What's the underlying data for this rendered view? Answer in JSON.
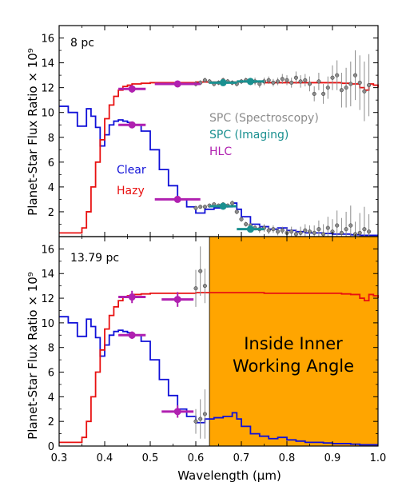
{
  "chart_data": [
    {
      "type": "line",
      "panel_label": "8 pc",
      "ylabel": "Planet-Star Flux Ratio  × 10⁹",
      "xlim": [
        0.3,
        1.0
      ],
      "ylim": [
        0,
        17
      ],
      "yticks": [
        "0",
        "2",
        "4",
        "6",
        "8",
        "10",
        "12",
        "14",
        "16"
      ],
      "legend_upper": [
        {
          "label": "SPC (Spectroscopy)",
          "color": "#8c8c8c"
        },
        {
          "label": "SPC (Imaging)",
          "color": "#1a9090"
        },
        {
          "label": "HLC",
          "color": "#b020b0"
        }
      ],
      "legend_lower": [
        {
          "label": "Clear",
          "color": "#1010d8"
        },
        {
          "label": "Hazy",
          "color": "#e81010"
        }
      ],
      "series": [
        {
          "name": "Clear",
          "color": "#1010d8",
          "x": [
            0.3,
            0.32,
            0.34,
            0.36,
            0.37,
            0.38,
            0.39,
            0.4,
            0.41,
            0.42,
            0.43,
            0.44,
            0.45,
            0.46,
            0.48,
            0.5,
            0.52,
            0.54,
            0.56,
            0.58,
            0.6,
            0.62,
            0.64,
            0.66,
            0.68,
            0.69,
            0.7,
            0.72,
            0.74,
            0.76,
            0.78,
            0.8,
            0.82,
            0.84,
            0.86,
            0.88,
            0.9,
            0.92,
            0.94,
            0.96,
            0.98,
            1.0
          ],
          "y": [
            10.5,
            10.0,
            8.9,
            10.3,
            9.7,
            8.8,
            7.3,
            8.2,
            9.0,
            9.3,
            9.4,
            9.3,
            9.2,
            9.0,
            8.5,
            7.0,
            5.4,
            4.1,
            3.0,
            2.4,
            1.9,
            2.2,
            2.3,
            2.4,
            2.7,
            2.2,
            1.6,
            1.0,
            0.8,
            0.6,
            0.7,
            0.5,
            0.4,
            0.3,
            0.3,
            0.25,
            0.2,
            0.2,
            0.15,
            0.1,
            0.1,
            0.1
          ]
        },
        {
          "name": "Hazy",
          "color": "#e81010",
          "x": [
            0.3,
            0.32,
            0.34,
            0.35,
            0.36,
            0.37,
            0.38,
            0.39,
            0.4,
            0.41,
            0.42,
            0.43,
            0.44,
            0.45,
            0.46,
            0.48,
            0.5,
            0.55,
            0.6,
            0.65,
            0.7,
            0.75,
            0.8,
            0.85,
            0.9,
            0.92,
            0.94,
            0.96,
            0.97,
            0.98,
            0.99,
            1.0
          ],
          "y": [
            0.3,
            0.3,
            0.3,
            0.7,
            2.0,
            4.0,
            6.0,
            7.8,
            9.5,
            10.6,
            11.3,
            11.8,
            12.1,
            12.2,
            12.3,
            12.35,
            12.4,
            12.4,
            12.45,
            12.45,
            12.45,
            12.4,
            12.4,
            12.4,
            12.4,
            12.35,
            12.3,
            12.0,
            11.8,
            12.3,
            12.2,
            12.0
          ]
        },
        {
          "name": "SPC (Spectroscopy)",
          "color": "#8c8c8c",
          "x": [
            0.6,
            0.61,
            0.62,
            0.63,
            0.64,
            0.65,
            0.66,
            0.67,
            0.68,
            0.69,
            0.7,
            0.71,
            0.72,
            0.73,
            0.74,
            0.75,
            0.76,
            0.77,
            0.78,
            0.79,
            0.8,
            0.81,
            0.82,
            0.83,
            0.84,
            0.85,
            0.86,
            0.87,
            0.88,
            0.89,
            0.9,
            0.91,
            0.92,
            0.93,
            0.94,
            0.95,
            0.96,
            0.97,
            0.98
          ],
          "y": [
            12.3,
            12.4,
            12.6,
            12.5,
            12.3,
            12.4,
            12.6,
            12.5,
            12.4,
            12.3,
            12.5,
            12.6,
            12.4,
            12.5,
            12.3,
            12.5,
            12.6,
            12.4,
            12.5,
            12.7,
            12.6,
            12.4,
            12.8,
            12.5,
            12.6,
            12.3,
            11.5,
            12.5,
            11.5,
            12.0,
            12.8,
            13.0,
            11.8,
            12.0,
            12.3,
            13.0,
            12.4,
            11.7,
            12.2
          ],
          "err": [
            0.2,
            0.2,
            0.2,
            0.2,
            0.2,
            0.2,
            0.2,
            0.2,
            0.2,
            0.2,
            0.2,
            0.2,
            0.2,
            0.3,
            0.3,
            0.3,
            0.3,
            0.3,
            0.3,
            0.4,
            0.4,
            0.4,
            0.5,
            0.5,
            0.5,
            0.6,
            0.6,
            0.7,
            0.8,
            0.9,
            1.0,
            1.2,
            1.4,
            1.6,
            1.8,
            2.0,
            2.2,
            2.4,
            2.5
          ]
        },
        {
          "name": "SPC (Spectroscopy) low",
          "color": "#8c8c8c",
          "x": [
            0.6,
            0.61,
            0.62,
            0.63,
            0.64,
            0.65,
            0.66,
            0.67,
            0.68,
            0.69,
            0.7,
            0.71,
            0.72,
            0.73,
            0.74,
            0.75,
            0.76,
            0.77,
            0.78,
            0.79,
            0.8,
            0.81,
            0.82,
            0.83,
            0.84,
            0.85,
            0.86,
            0.87,
            0.88,
            0.89,
            0.9,
            0.91,
            0.92,
            0.93,
            0.94,
            0.95,
            0.96,
            0.97,
            0.98
          ],
          "y": [
            2.3,
            2.4,
            2.4,
            2.5,
            2.6,
            2.5,
            2.6,
            2.5,
            2.7,
            2.0,
            1.4,
            1.0,
            0.9,
            0.7,
            0.6,
            0.7,
            0.5,
            0.6,
            0.4,
            0.5,
            0.3,
            0.4,
            0.2,
            0.3,
            0.5,
            0.4,
            0.3,
            0.6,
            0.2,
            0.7,
            0.4,
            0.9,
            0.3,
            0.6,
            0.9,
            0.2,
            0.3,
            0.6,
            0.4
          ],
          "err": [
            0.1,
            0.1,
            0.1,
            0.1,
            0.1,
            0.1,
            0.1,
            0.1,
            0.2,
            0.2,
            0.2,
            0.2,
            0.2,
            0.2,
            0.3,
            0.3,
            0.3,
            0.3,
            0.3,
            0.3,
            0.4,
            0.4,
            0.4,
            0.5,
            0.5,
            0.5,
            0.6,
            0.7,
            0.8,
            0.9,
            1.0,
            1.2,
            1.2,
            1.4,
            1.6,
            1.0,
            1.6,
            1.8,
            1.4
          ]
        },
        {
          "name": "SPC (Imaging)",
          "color": "#1a9090",
          "points": [
            {
              "x": 0.66,
              "y": 12.4,
              "xerr": 0.03
            },
            {
              "x": 0.72,
              "y": 12.5,
              "xerr": 0.03
            },
            {
              "x": 0.66,
              "y": 2.45,
              "xerr": 0.03
            },
            {
              "x": 0.72,
              "y": 0.6,
              "xerr": 0.03
            }
          ]
        },
        {
          "name": "HLC",
          "color": "#b020b0",
          "points": [
            {
              "x": 0.46,
              "y": 11.9,
              "xerr": 0.03,
              "yerr": 0.3
            },
            {
              "x": 0.56,
              "y": 12.3,
              "xerr": 0.05,
              "yerr": 0.2
            },
            {
              "x": 0.46,
              "y": 9.0,
              "xerr": 0.03,
              "yerr": 0.2
            },
            {
              "x": 0.56,
              "y": 3.0,
              "xerr": 0.05,
              "yerr": 0.2
            }
          ]
        }
      ]
    },
    {
      "type": "line",
      "panel_label": "13.79 pc",
      "ylabel": "Planet-Star Flux Ratio  × 10⁹",
      "xlabel": "Wavelength (μm)",
      "xlim": [
        0.3,
        1.0
      ],
      "ylim": [
        0,
        17
      ],
      "xticks": [
        "0.3",
        "0.4",
        "0.5",
        "0.6",
        "0.7",
        "0.8",
        "0.9",
        "1.0"
      ],
      "yticks": [
        "0",
        "2",
        "4",
        "6",
        "8",
        "10",
        "12",
        "14",
        "16"
      ],
      "shaded_region": {
        "x_start": 0.63,
        "x_end": 1.0,
        "color": "#ffa500",
        "label_line1": "Inside Inner",
        "label_line2": "Working Angle"
      },
      "series": [
        {
          "name": "Clear",
          "color": "#1010d8",
          "x": [
            0.3,
            0.32,
            0.34,
            0.36,
            0.37,
            0.38,
            0.39,
            0.4,
            0.41,
            0.42,
            0.43,
            0.44,
            0.45,
            0.46,
            0.48,
            0.5,
            0.52,
            0.54,
            0.56,
            0.58,
            0.6,
            0.62,
            0.64,
            0.66,
            0.68,
            0.69,
            0.7,
            0.72,
            0.74,
            0.76,
            0.78,
            0.8,
            0.82,
            0.84,
            0.86,
            0.88,
            0.9,
            0.92,
            0.94,
            0.96,
            0.98,
            1.0
          ],
          "y": [
            10.5,
            10.0,
            8.9,
            10.3,
            9.7,
            8.8,
            7.3,
            8.2,
            9.0,
            9.3,
            9.4,
            9.3,
            9.2,
            9.0,
            8.5,
            7.0,
            5.4,
            4.1,
            3.0,
            2.4,
            1.9,
            2.2,
            2.3,
            2.4,
            2.7,
            2.2,
            1.6,
            1.0,
            0.8,
            0.6,
            0.7,
            0.5,
            0.4,
            0.3,
            0.3,
            0.25,
            0.2,
            0.2,
            0.15,
            0.1,
            0.1,
            0.1
          ]
        },
        {
          "name": "Hazy",
          "color": "#e81010",
          "x": [
            0.3,
            0.32,
            0.34,
            0.35,
            0.36,
            0.37,
            0.38,
            0.39,
            0.4,
            0.41,
            0.42,
            0.43,
            0.44,
            0.45,
            0.46,
            0.48,
            0.5,
            0.55,
            0.6,
            0.65,
            0.7,
            0.75,
            0.8,
            0.85,
            0.9,
            0.92,
            0.94,
            0.96,
            0.97,
            0.98,
            0.99,
            1.0
          ],
          "y": [
            0.3,
            0.3,
            0.3,
            0.7,
            2.0,
            4.0,
            6.0,
            7.8,
            9.5,
            10.6,
            11.3,
            11.8,
            12.1,
            12.2,
            12.3,
            12.35,
            12.4,
            12.4,
            12.45,
            12.45,
            12.45,
            12.4,
            12.4,
            12.4,
            12.4,
            12.35,
            12.3,
            12.0,
            11.8,
            12.3,
            12.2,
            12.0
          ]
        },
        {
          "name": "SPC (Spectroscopy)",
          "color": "#8c8c8c",
          "x": [
            0.6,
            0.61,
            0.62
          ],
          "y": [
            12.8,
            14.2,
            13.0
          ],
          "err": [
            1.5,
            2.0,
            1.4
          ]
        },
        {
          "name": "SPC (Spectroscopy) low",
          "color": "#8c8c8c",
          "x": [
            0.6,
            0.61,
            0.62
          ],
          "y": [
            2.0,
            2.2,
            2.6
          ],
          "err": [
            1.0,
            1.6,
            2.0
          ]
        },
        {
          "name": "HLC",
          "color": "#b020b0",
          "points": [
            {
              "x": 0.46,
              "y": 12.1,
              "xerr": 0.03,
              "yerr": 0.5
            },
            {
              "x": 0.56,
              "y": 11.9,
              "xerr": 0.035,
              "yerr": 0.6
            },
            {
              "x": 0.46,
              "y": 9.0,
              "xerr": 0.03,
              "yerr": 0.3
            },
            {
              "x": 0.56,
              "y": 2.8,
              "xerr": 0.035,
              "yerr": 0.5
            }
          ]
        }
      ]
    }
  ]
}
